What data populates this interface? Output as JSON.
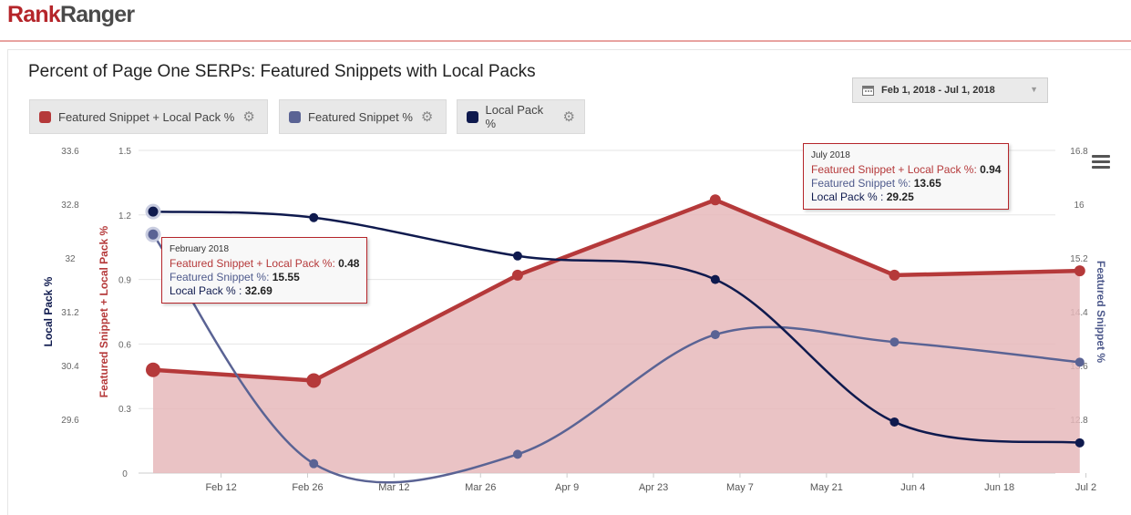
{
  "header": {
    "logo_part1": "Rank",
    "logo_part2": "Ranger"
  },
  "chart_title": "Percent of Page One SERPs: Featured Snippets with Local Packs",
  "date_range": "Feb 1, 2018 - Jul 1, 2018",
  "legend": [
    {
      "label": "Featured Snippet + Local Pack %",
      "color": "#b5393a"
    },
    {
      "label": "Featured Snippet %",
      "color": "#5a6394"
    },
    {
      "label": "Local Pack %",
      "color": "#0f1a4e"
    }
  ],
  "tooltips": {
    "feb": {
      "title": "February 2018",
      "s1_label": "Featured Snippet + Local Pack %:",
      "s1_value": "0.48",
      "s2_label": "Featured Snippet %:",
      "s2_value": "15.55",
      "s3_label": "Local Pack % :",
      "s3_value": "32.69"
    },
    "jul": {
      "title": "July 2018",
      "s1_label": "Featured Snippet + Local Pack %:",
      "s1_value": "0.94",
      "s2_label": "Featured Snippet %:",
      "s2_value": "13.65",
      "s3_label": "Local Pack % :",
      "s3_value": "29.25"
    }
  },
  "chart_data": {
    "type": "area",
    "title": "Percent of Page One SERPs: Featured Snippets with Local Packs",
    "x_ticks": [
      "Feb 12",
      "Feb 26",
      "Mar 12",
      "Mar 26",
      "Apr 9",
      "Apr 23",
      "May 7",
      "May 21",
      "Jun 4",
      "Jun 18",
      "Jul 2"
    ],
    "x_points": [
      "Feb 1",
      "Feb 27",
      "Apr 1",
      "May 3",
      "Jun 1",
      "Jul 1"
    ],
    "axes": {
      "local_pack": {
        "label": "Local Pack %",
        "side": "left-outer",
        "ticks": [
          "33.6",
          "32.8",
          "32",
          "31.2",
          "30.4",
          "29.6"
        ],
        "range": [
          28.8,
          33.6
        ],
        "color": "#0f1a4e"
      },
      "fs_lp": {
        "label": "Featured Snippet + Local Pack %",
        "side": "left-inner",
        "ticks": [
          "1.5",
          "1.2",
          "0.9",
          "0.6",
          "0.3",
          "0"
        ],
        "range": [
          0,
          1.5
        ],
        "color": "#b5393a"
      },
      "fs": {
        "label": "Featured Snippet %",
        "side": "right",
        "ticks": [
          "16.8",
          "16",
          "15.2",
          "14.4",
          "13.6",
          "12.8"
        ],
        "range": [
          12.0,
          16.8
        ],
        "color": "#4e5a8c"
      }
    },
    "series": [
      {
        "name": "Featured Snippet + Local Pack %",
        "axis": "fs_lp",
        "type": "area",
        "color": "#b5393a",
        "values": [
          0.48,
          0.43,
          0.92,
          1.27,
          0.92,
          0.94
        ]
      },
      {
        "name": "Featured Snippet %",
        "axis": "fs",
        "type": "spline",
        "color": "#5a6394",
        "values": [
          15.55,
          12.14,
          12.28,
          14.06,
          13.95,
          13.65
        ]
      },
      {
        "name": "Local Pack %",
        "axis": "local_pack",
        "type": "spline",
        "color": "#0f1a4e",
        "values": [
          32.69,
          32.6,
          32.03,
          31.68,
          29.56,
          29.25
        ]
      }
    ]
  }
}
